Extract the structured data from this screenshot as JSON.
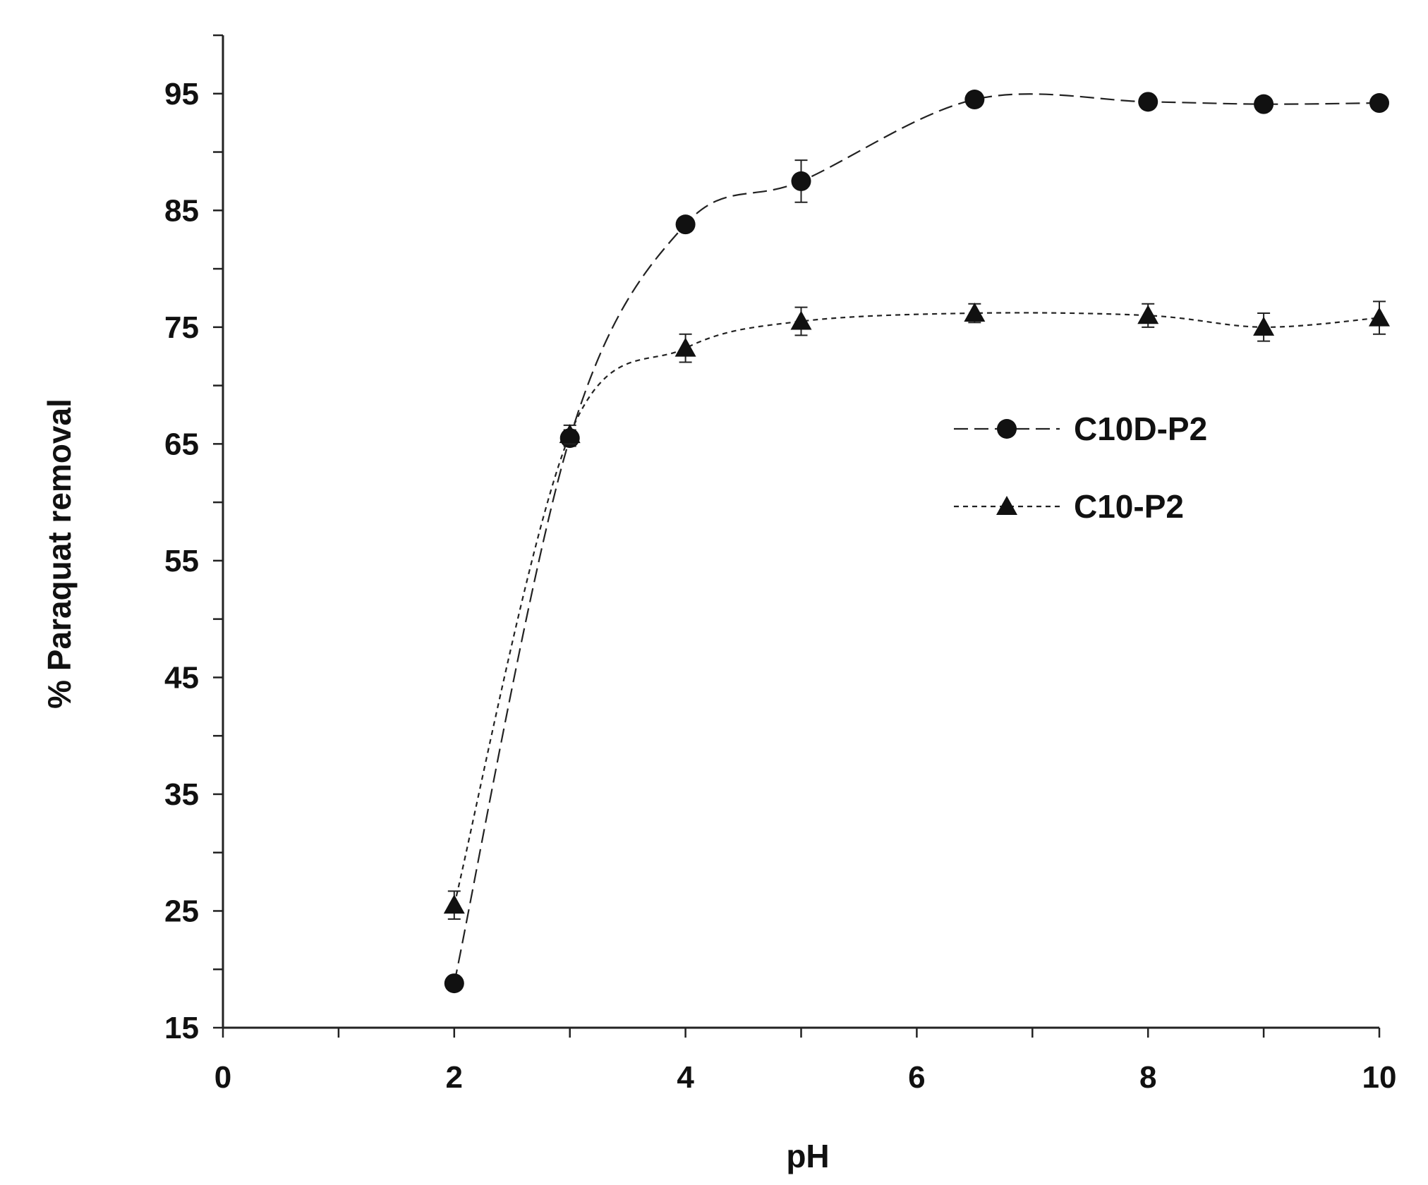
{
  "chart_data": {
    "type": "line",
    "xlabel": "pH",
    "ylabel": "% Paraquat removal",
    "xlim": [
      0,
      10
    ],
    "ylim": [
      15,
      100
    ],
    "x_ticks": [
      0,
      2,
      4,
      6,
      8,
      10
    ],
    "x_tick_labels": [
      "0",
      "2",
      "4",
      "6",
      "8",
      "10"
    ],
    "x_minor_step": 1,
    "y_ticks": [
      15,
      25,
      35,
      45,
      55,
      65,
      75,
      85,
      95
    ],
    "y_tick_labels": [
      "15",
      "25",
      "35",
      "45",
      "55",
      "65",
      "75",
      "85",
      "95"
    ],
    "y_minor_step": 5,
    "grid": false,
    "legend_position": "center-right",
    "series": [
      {
        "name": "C10D-P2",
        "marker": "circle",
        "line_style": "long-dash",
        "x": [
          2,
          3,
          4,
          5,
          6.5,
          8,
          9,
          10
        ],
        "y": [
          18.8,
          65.5,
          83.8,
          87.5,
          94.5,
          94.3,
          94.1,
          94.2
        ],
        "error": [
          0.5,
          0.7,
          0.6,
          1.8,
          0.6,
          0.5,
          0.5,
          0.5
        ]
      },
      {
        "name": "C10-P2",
        "marker": "triangle",
        "line_style": "short-dash",
        "x": [
          2,
          3,
          4,
          5,
          6.5,
          8,
          9,
          10
        ],
        "y": [
          25.5,
          65.8,
          73.2,
          75.5,
          76.2,
          76.0,
          75.0,
          75.8
        ],
        "error": [
          1.2,
          0.8,
          1.2,
          1.2,
          0.8,
          1.0,
          1.2,
          1.4
        ]
      }
    ]
  }
}
